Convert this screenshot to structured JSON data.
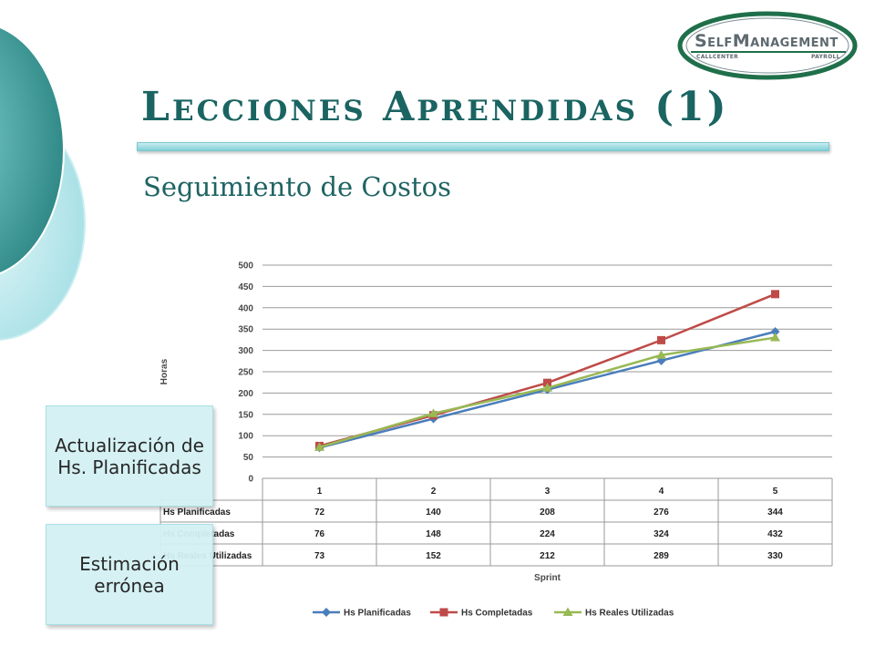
{
  "header": {
    "logo": {
      "name": "SelfManagement",
      "sub_left": "CALLCENTER",
      "sub_right": "PAYROLL"
    },
    "title": "Lecciones Aprendidas (1)",
    "subtitle": "Seguimiento de Costos"
  },
  "callouts": [
    {
      "text": "Actualización de Hs. Planificadas"
    },
    {
      "text": "Estimación errónea"
    }
  ],
  "colors": {
    "title": "#1a6462",
    "accent": "#7fd0d8",
    "series": [
      "#4a7ebb",
      "#be4b48",
      "#98b954"
    ]
  },
  "chart_data": {
    "type": "line",
    "xlabel": "Sprint",
    "ylabel": "Horas",
    "ylim": [
      0,
      500
    ],
    "ytick_step": 50,
    "grid": true,
    "legend_position": "bottom",
    "categories": [
      "1",
      "2",
      "3",
      "4",
      "5"
    ],
    "series": [
      {
        "name": "Hs Planificadas",
        "values": [
          72,
          140,
          208,
          276,
          344
        ],
        "marker": "diamond"
      },
      {
        "name": "Hs Completadas",
        "values": [
          76,
          148,
          224,
          324,
          432
        ],
        "marker": "square"
      },
      {
        "name": "Hs Reales Utilizadas",
        "values": [
          73,
          152,
          212,
          289,
          330
        ],
        "marker": "triangle"
      }
    ],
    "data_table": {
      "row_labels": [
        "Hs Planificadas",
        "Hs Completadas",
        "Hs Reales Utilizadas"
      ]
    }
  }
}
